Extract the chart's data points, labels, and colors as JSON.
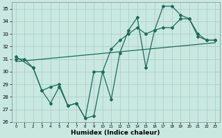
{
  "xlabel": "Humidex (Indice chaleur)",
  "ylabel": "",
  "bg_color": "#c8e8e0",
  "line_color": "#1a6b5a",
  "grid_color": "#a8ccc4",
  "xlim": [
    -0.5,
    23.5
  ],
  "ylim": [
    26,
    35.5
  ],
  "yticks": [
    26,
    27,
    28,
    29,
    30,
    31,
    32,
    33,
    34,
    35
  ],
  "xticks": [
    0,
    1,
    2,
    3,
    4,
    5,
    6,
    7,
    8,
    9,
    10,
    11,
    12,
    13,
    14,
    15,
    16,
    17,
    18,
    19,
    20,
    21,
    22,
    23
  ],
  "series1_x": [
    0,
    1,
    2,
    3,
    4,
    5,
    6,
    7,
    8,
    9,
    10,
    11,
    12,
    13,
    14,
    15,
    16,
    17,
    18,
    19,
    20,
    21,
    22,
    23
  ],
  "series1_y": [
    31.0,
    31.0,
    30.3,
    28.5,
    27.5,
    28.8,
    27.3,
    27.5,
    26.3,
    26.5,
    30.0,
    27.8,
    31.5,
    33.3,
    34.3,
    30.3,
    33.3,
    35.2,
    35.2,
    34.5,
    34.2,
    33.0,
    32.5,
    32.5
  ],
  "series2_x": [
    0,
    2,
    3,
    4,
    5,
    6,
    7,
    8,
    9,
    10,
    11,
    12,
    13,
    14,
    15,
    16,
    17,
    18,
    19,
    20,
    21,
    22,
    23
  ],
  "series2_y": [
    31.2,
    30.3,
    28.5,
    28.8,
    29.0,
    27.3,
    27.5,
    26.3,
    30.0,
    30.0,
    31.8,
    32.5,
    33.0,
    33.5,
    33.0,
    33.3,
    33.5,
    33.5,
    34.2,
    34.2,
    32.8,
    32.5,
    32.5
  ],
  "trend_x": [
    0,
    23
  ],
  "trend_y": [
    30.8,
    32.3
  ]
}
